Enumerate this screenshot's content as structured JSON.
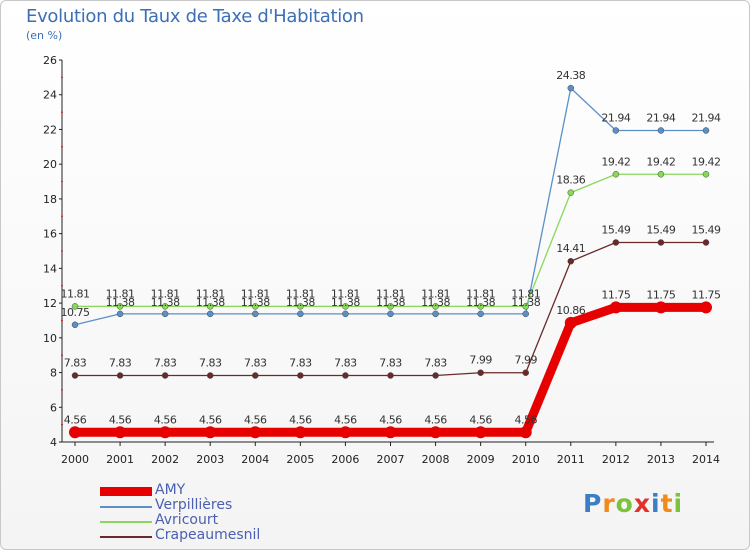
{
  "chart_data": {
    "type": "line",
    "title": "Evolution du Taux de Taxe d'Habitation",
    "subtitle": "(en %)",
    "xlabel": "",
    "ylabel": "",
    "categories": [
      "2000",
      "2001",
      "2002",
      "2003",
      "2004",
      "2005",
      "2006",
      "2007",
      "2008",
      "2009",
      "2010",
      "2011",
      "2012",
      "2013",
      "2014"
    ],
    "ylim": [
      4,
      26
    ],
    "yticks": [
      "4",
      "6",
      "8",
      "10",
      "12",
      "14",
      "16",
      "18",
      "20",
      "22",
      "24",
      "26"
    ],
    "legend_position": "bottom-left",
    "series": [
      {
        "name": "AMY",
        "color": "#e60000",
        "values": [
          4.56,
          4.56,
          4.56,
          4.56,
          4.56,
          4.56,
          4.56,
          4.56,
          4.56,
          4.56,
          4.56,
          10.86,
          11.75,
          11.75,
          11.75
        ],
        "labels": [
          "4.56",
          "4.56",
          "4.56",
          "4.56",
          "4.56",
          "4.56",
          "4.56",
          "4.56",
          "4.56",
          "4.56",
          "4.56",
          "10.86",
          "11.75",
          "11.75",
          "11.75"
        ]
      },
      {
        "name": "Verpillières",
        "color": "#5b8fc8",
        "values": [
          10.75,
          11.38,
          11.38,
          11.38,
          11.38,
          11.38,
          11.38,
          11.38,
          11.38,
          11.38,
          11.38,
          24.38,
          21.94,
          21.94,
          21.94
        ],
        "labels": [
          "10.75",
          "11.38",
          "11.38",
          "11.38",
          "11.38",
          "11.38",
          "11.38",
          "11.38",
          "11.38",
          "11.38",
          "11.38",
          "24.38",
          "21.94",
          "21.94",
          "21.94"
        ]
      },
      {
        "name": "Avricourt",
        "color": "#88d85a",
        "values": [
          11.81,
          11.81,
          11.81,
          11.81,
          11.81,
          11.81,
          11.81,
          11.81,
          11.81,
          11.81,
          11.81,
          18.36,
          19.42,
          19.42,
          19.42
        ],
        "labels": [
          "11.81",
          "11.81",
          "11.81",
          "11.81",
          "11.81",
          "11.81",
          "11.81",
          "11.81",
          "11.81",
          "11.81",
          "11.81",
          "18.36",
          "19.42",
          "19.42",
          "19.42"
        ]
      },
      {
        "name": "Crapeaumesnil",
        "color": "#6b2a2a",
        "values": [
          7.83,
          7.83,
          7.83,
          7.83,
          7.83,
          7.83,
          7.83,
          7.83,
          7.83,
          7.99,
          7.99,
          14.41,
          15.49,
          15.49,
          15.49
        ],
        "labels": [
          "7.83",
          "7.83",
          "7.83",
          "7.83",
          "7.83",
          "7.83",
          "7.83",
          "7.83",
          "7.83",
          "7.99",
          "7.99",
          "14.41",
          "15.49",
          "15.49",
          "15.49"
        ]
      }
    ]
  },
  "logo": {
    "letters": [
      "P",
      "r",
      "o",
      "x",
      "i",
      "t",
      "i"
    ],
    "colors": [
      "#3a7ec4",
      "#f08a1c",
      "#7cc23a",
      "#e0322a",
      "#3a7ec4",
      "#f08a1c",
      "#7cc23a"
    ]
  }
}
